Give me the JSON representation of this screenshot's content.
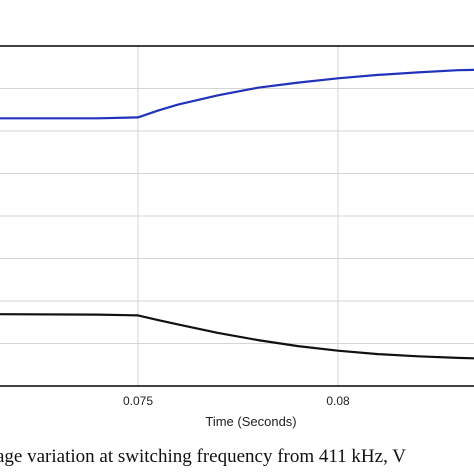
{
  "chart_data": {
    "type": "line",
    "xlabel": "Time (Seconds)",
    "ylabel": "",
    "title": "",
    "xlim": [
      0.0715,
      0.0835
    ],
    "ylim": [
      0,
      8
    ],
    "x_ticks": [
      0.075,
      0.08
    ],
    "x_tick_labels": [
      "0.075",
      "0.08"
    ],
    "y_gridlines": [
      1,
      2,
      3,
      4,
      5,
      6,
      7
    ],
    "grid": true,
    "series": [
      {
        "color": "#2233bb",
        "x": [
          0.0715,
          0.074,
          0.075,
          0.0755,
          0.076,
          0.077,
          0.078,
          0.079,
          0.08,
          0.081,
          0.082,
          0.083,
          0.0835
        ],
        "y": [
          6.3,
          6.3,
          6.32,
          6.48,
          6.62,
          6.84,
          7.02,
          7.14,
          7.24,
          7.32,
          7.38,
          7.43,
          7.44
        ]
      },
      {
        "color": "#111111",
        "x": [
          0.0715,
          0.074,
          0.075,
          0.0755,
          0.076,
          0.077,
          0.078,
          0.079,
          0.08,
          0.081,
          0.082,
          0.083,
          0.0835
        ],
        "y": [
          1.69,
          1.68,
          1.66,
          1.55,
          1.45,
          1.25,
          1.08,
          0.94,
          0.83,
          0.75,
          0.7,
          0.66,
          0.65
        ]
      }
    ]
  },
  "caption": {
    "text": "age variation at switching frequency from 411 kHz, V"
  }
}
